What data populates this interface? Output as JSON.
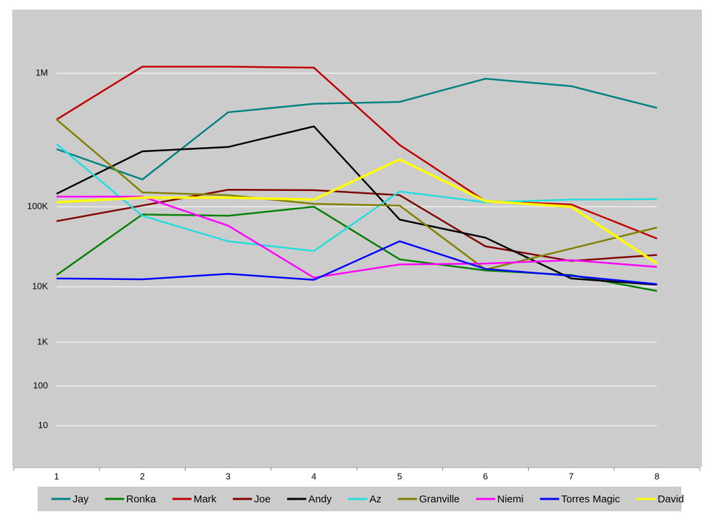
{
  "chart_data": {
    "type": "line",
    "categories": [
      1,
      2,
      3,
      4,
      5,
      6,
      7,
      8
    ],
    "log_scale": true,
    "grid": true,
    "ylim": [
      1,
      3000000
    ],
    "yticks": [
      10,
      100,
      {
        "value": 1000,
        "label": "1K"
      },
      {
        "value": 10000,
        "label": "10K"
      },
      {
        "value": 100000,
        "label": "100K"
      },
      {
        "value": 1000000,
        "label": "1M"
      }
    ],
    "legend": "bottom",
    "series": [
      {
        "name": "Jay",
        "color": "#008080",
        "values": [
          270000,
          160000,
          510000,
          590000,
          610000,
          910000,
          800000,
          550000
        ]
      },
      {
        "name": "Ronka",
        "color": "#008000",
        "values": [
          14000,
          80000,
          77000,
          100000,
          22000,
          16000,
          14000,
          8400
        ]
      },
      {
        "name": "Mark",
        "color": "#c00000",
        "values": [
          450000,
          1120000,
          1120000,
          1100000,
          290000,
          110000,
          104000,
          40000
        ]
      },
      {
        "name": "Joe",
        "color": "#800000",
        "values": [
          66000,
          102000,
          134000,
          133000,
          122000,
          32000,
          21000,
          25000
        ]
      },
      {
        "name": "Andy",
        "color": "#000000",
        "values": [
          125000,
          260000,
          280000,
          400000,
          69000,
          41000,
          12700,
          10600
        ]
      },
      {
        "name": "Az",
        "color": "#22dddd",
        "values": [
          295000,
          77000,
          37000,
          28000,
          130000,
          108000,
          113000,
          114000
        ]
      },
      {
        "name": "Granville",
        "color": "#808000",
        "values": [
          450000,
          128000,
          122000,
          105000,
          102000,
          16400,
          30000,
          55000
        ]
      },
      {
        "name": "Niemi",
        "color": "#ff00ff",
        "values": [
          119000,
          119000,
          58000,
          13000,
          19000,
          19500,
          21500,
          17700
        ]
      },
      {
        "name": "Torres Magic",
        "color": "#0000ff",
        "values": [
          12700,
          12400,
          14500,
          12200,
          37000,
          16700,
          13700,
          10800
        ]
      },
      {
        "name": "David",
        "color": "#ffff00",
        "values": [
          108000,
          117000,
          117000,
          113000,
          226000,
          110000,
          100000,
          19500
        ]
      }
    ]
  }
}
